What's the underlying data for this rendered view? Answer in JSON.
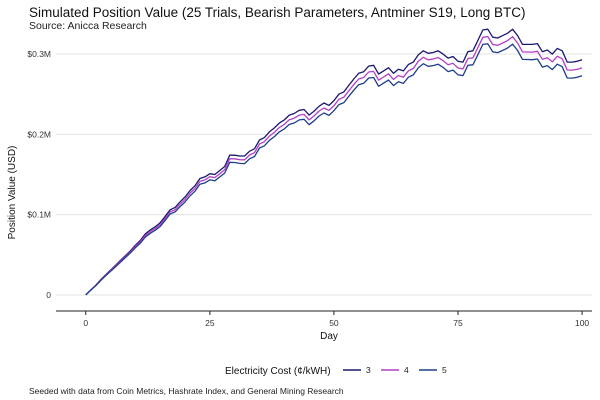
{
  "chart_data": {
    "type": "line",
    "title": "Simulated Position Value (25 Trials, Bearish Parameters, Antminer S19, Long BTC)",
    "subtitle": "Source: Anicca Research",
    "caption": "Seeded with data from Coin Metrics, Hashrate Index, and General Mining Research",
    "xlabel": "Day",
    "ylabel": "Position Value (USD)",
    "xlim": [
      -6,
      102
    ],
    "ylim": [
      -20000,
      320000
    ],
    "x_ticks": [
      0,
      25,
      50,
      75,
      100
    ],
    "x_tick_labels": [
      "0",
      "25",
      "50",
      "75",
      "100"
    ],
    "y_ticks": [
      0,
      100000,
      200000,
      300000
    ],
    "y_tick_labels": [
      "0",
      "$0.1M",
      "$0.2M",
      "$0.3M"
    ],
    "grid": "horizontal",
    "legend": {
      "title": "Electricity Cost (¢/kWH)",
      "position": "bottom"
    },
    "colors": {
      "3": "#1a1a6e",
      "4": "#b43fc4",
      "5": "#1f3f8a"
    },
    "x": [
      0,
      1,
      2,
      3,
      4,
      5,
      6,
      7,
      8,
      9,
      10,
      11,
      12,
      13,
      14,
      15,
      16,
      17,
      18,
      19,
      20,
      21,
      22,
      23,
      24,
      25,
      26,
      27,
      28,
      29,
      30,
      31,
      32,
      33,
      34,
      35,
      36,
      37,
      38,
      39,
      40,
      41,
      42,
      43,
      44,
      45,
      46,
      47,
      48,
      49,
      50,
      51,
      52,
      53,
      54,
      55,
      56,
      57,
      58,
      59,
      60,
      61,
      62,
      63,
      64,
      65,
      66,
      67,
      68,
      69,
      70,
      71,
      72,
      73,
      74,
      75,
      76,
      77,
      78,
      79,
      80,
      81,
      82,
      83,
      84,
      85,
      86,
      87,
      88,
      89,
      90,
      91,
      92,
      93,
      94,
      95,
      96,
      97,
      98,
      99,
      100
    ],
    "series": [
      {
        "name": "3",
        "values": [
          0,
          6000,
          12000,
          19000,
          25000,
          31000,
          37000,
          43000,
          49000,
          55000,
          62000,
          68000,
          76000,
          81000,
          85000,
          90000,
          98000,
          106000,
          109000,
          116000,
          122000,
          130000,
          136000,
          145000,
          147000,
          151000,
          150000,
          155000,
          160000,
          174000,
          174000,
          173000,
          173000,
          179000,
          182000,
          193000,
          196000,
          203000,
          208000,
          214000,
          218000,
          224000,
          226000,
          230000,
          231000,
          224000,
          229000,
          235000,
          239000,
          236000,
          242000,
          250000,
          253000,
          261000,
          269000,
          276000,
          278000,
          285000,
          286000,
          275000,
          279000,
          283000,
          276000,
          281000,
          279000,
          287000,
          290000,
          299000,
          304000,
          301000,
          302000,
          304000,
          300000,
          295000,
          297000,
          291000,
          290000,
          303000,
          304000,
          317000,
          330000,
          331000,
          321000,
          320000,
          323000,
          326000,
          331000,
          323000,
          312000,
          312000,
          312000,
          313000,
          303000,
          305000,
          300000,
          307000,
          304000,
          290000,
          290000,
          291000,
          293000
        ]
      },
      {
        "name": "4",
        "values": [
          0,
          6000,
          11700,
          18500,
          24400,
          30200,
          36000,
          42000,
          47800,
          53700,
          60400,
          66300,
          74000,
          78900,
          82800,
          87600,
          95500,
          103400,
          106200,
          113000,
          118900,
          126800,
          132600,
          141400,
          143300,
          147200,
          146100,
          151000,
          155900,
          169600,
          169500,
          168400,
          168300,
          174300,
          177200,
          188000,
          190900,
          197800,
          202600,
          208500,
          212400,
          218200,
          220100,
          224000,
          224900,
          218000,
          223000,
          228900,
          232800,
          229800,
          235700,
          243500,
          246300,
          254200,
          262100,
          268900,
          270800,
          277600,
          278400,
          267500,
          271400,
          275400,
          268400,
          273300,
          271200,
          279100,
          282000,
          291000,
          296000,
          292900,
          293800,
          295700,
          291700,
          286600,
          288500,
          282600,
          281600,
          294500,
          295300,
          308100,
          320900,
          321800,
          311900,
          310900,
          313800,
          316800,
          321700,
          313700,
          302700,
          302600,
          302500,
          303400,
          293500,
          295400,
          290300,
          297200,
          294100,
          280100,
          280000,
          280900,
          282800
        ]
      },
      {
        "name": "5",
        "values": [
          0,
          6000,
          11400,
          18000,
          23800,
          29400,
          35000,
          40800,
          46600,
          52300,
          58800,
          64600,
          72000,
          76800,
          80600,
          85200,
          92900,
          100800,
          103400,
          110000,
          115800,
          123400,
          129200,
          137800,
          139600,
          143400,
          142200,
          147000,
          151800,
          165200,
          165000,
          163800,
          163600,
          169600,
          172400,
          183000,
          185800,
          192600,
          197200,
          203000,
          206800,
          212400,
          214200,
          218000,
          218800,
          212000,
          216900,
          222800,
          226600,
          223600,
          229400,
          237000,
          239600,
          247400,
          255000,
          261800,
          263600,
          270200,
          270800,
          259900,
          263800,
          267600,
          260700,
          265600,
          263400,
          271200,
          274000,
          283000,
          288000,
          284800,
          285600,
          287400,
          283400,
          278200,
          280000,
          274200,
          273200,
          286000,
          286600,
          299200,
          312000,
          312800,
          302800,
          301800,
          304600,
          307600,
          312400,
          304400,
          293400,
          293200,
          293000,
          293800,
          283800,
          285600,
          280600,
          287400,
          284200,
          270200,
          270000,
          271000,
          273000
        ]
      }
    ]
  }
}
